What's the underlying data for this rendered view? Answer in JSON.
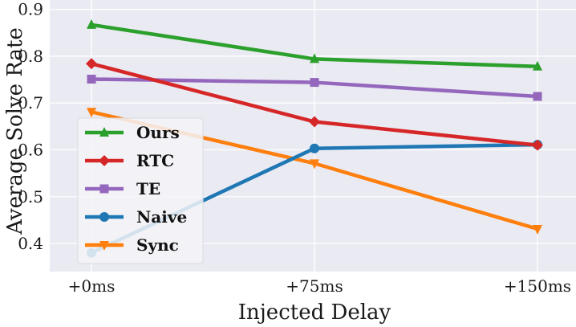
{
  "chart_data": {
    "type": "line",
    "xlabel": "Injected Delay",
    "ylabel": "Average Solve Rate",
    "categories": [
      "+0ms",
      "+75ms",
      "+150ms"
    ],
    "y_ticks": [
      "0.4",
      "0.5",
      "0.6",
      "0.7",
      "0.8",
      "0.9"
    ],
    "ylim": [
      0.34,
      0.92
    ],
    "grid": true,
    "legend_position": "lower-left",
    "series": [
      {
        "name": "Ours",
        "values": [
          0.867,
          0.794,
          0.778
        ],
        "color": "#2ca02c",
        "marker": "triangle-up"
      },
      {
        "name": "RTC",
        "values": [
          0.784,
          0.66,
          0.61
        ],
        "color": "#d62728",
        "marker": "diamond"
      },
      {
        "name": "TE",
        "values": [
          0.751,
          0.744,
          0.714
        ],
        "color": "#9467bd",
        "marker": "square"
      },
      {
        "name": "Naive",
        "values": [
          0.38,
          0.603,
          0.611
        ],
        "color": "#1f77b4",
        "marker": "circle"
      },
      {
        "name": "Sync",
        "values": [
          0.681,
          0.571,
          0.431
        ],
        "color": "#ff7f0e",
        "marker": "triangle-down"
      }
    ]
  }
}
